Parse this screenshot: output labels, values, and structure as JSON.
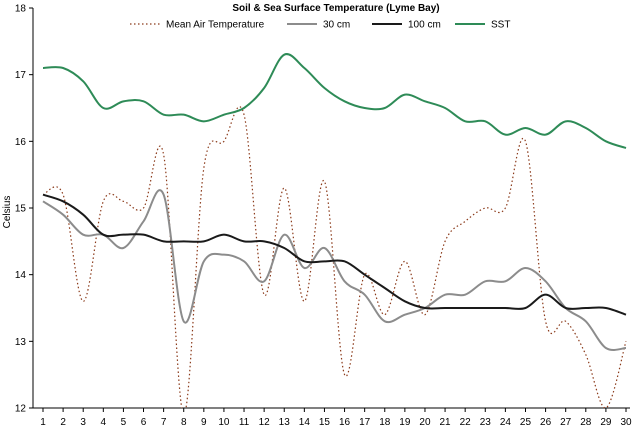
{
  "chart_data": {
    "type": "line",
    "title": "Soil & Sea Surface Temperature (Lyme Bay)",
    "xlabel": "",
    "ylabel": "Celsius",
    "ylim": [
      12,
      18
    ],
    "yticks": [
      12,
      13,
      14,
      15,
      16,
      17,
      18
    ],
    "xlim": [
      1,
      30
    ],
    "x": [
      1,
      2,
      3,
      4,
      5,
      6,
      7,
      8,
      9,
      10,
      11,
      12,
      13,
      14,
      15,
      16,
      17,
      18,
      19,
      20,
      21,
      22,
      23,
      24,
      25,
      26,
      27,
      28,
      29,
      30
    ],
    "grid": false,
    "legend_position": "top",
    "series": [
      {
        "name": "Mean Air Temperature",
        "color": "#8b3a1a",
        "style": "dotted",
        "values": [
          15.2,
          15.2,
          13.6,
          15.1,
          15.1,
          15.0,
          15.8,
          11.9,
          15.6,
          16.0,
          16.4,
          13.7,
          15.3,
          13.6,
          15.4,
          12.5,
          14.0,
          13.4,
          14.2,
          13.4,
          14.5,
          14.8,
          15.0,
          15.0,
          16.0,
          13.3,
          13.3,
          12.8,
          12.0,
          13.0
        ]
      },
      {
        "name": "30 cm",
        "color": "#8c8c8c",
        "style": "solid",
        "values": [
          15.1,
          14.9,
          14.6,
          14.6,
          14.4,
          14.8,
          15.2,
          13.3,
          14.2,
          14.3,
          14.2,
          13.9,
          14.6,
          14.1,
          14.4,
          13.9,
          13.7,
          13.3,
          13.4,
          13.5,
          13.7,
          13.7,
          13.9,
          13.9,
          14.1,
          13.9,
          13.5,
          13.3,
          12.9,
          12.9
        ]
      },
      {
        "name": "100 cm",
        "color": "#1a1a1a",
        "style": "solid",
        "values": [
          15.2,
          15.1,
          14.9,
          14.6,
          14.6,
          14.6,
          14.5,
          14.5,
          14.5,
          14.6,
          14.5,
          14.5,
          14.4,
          14.2,
          14.2,
          14.2,
          14.0,
          13.8,
          13.6,
          13.5,
          13.5,
          13.5,
          13.5,
          13.5,
          13.5,
          13.7,
          13.5,
          13.5,
          13.5,
          13.4
        ]
      },
      {
        "name": "SST",
        "color": "#2e8b57",
        "style": "solid",
        "values": [
          17.1,
          17.1,
          16.9,
          16.5,
          16.6,
          16.6,
          16.4,
          16.4,
          16.3,
          16.4,
          16.5,
          16.8,
          17.3,
          17.1,
          16.8,
          16.6,
          16.5,
          16.5,
          16.7,
          16.6,
          16.5,
          16.3,
          16.3,
          16.1,
          16.2,
          16.1,
          16.3,
          16.2,
          16.0,
          15.9
        ]
      }
    ]
  }
}
